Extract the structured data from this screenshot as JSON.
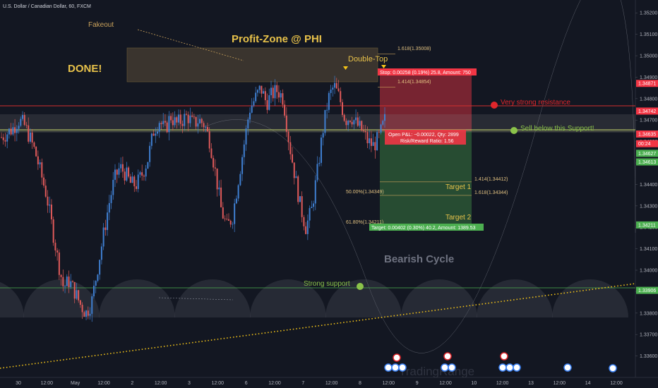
{
  "header": {
    "symbol_label": "U.S. Dollar / Canadian Dollar, 60, FXCM"
  },
  "annotations": {
    "fakeout": "Fakeout",
    "profit_zone": "Profit-Zone @ PHI",
    "done": "DONE!",
    "double_top": "Double-Top",
    "very_strong_resistance": "Very strong resistance",
    "sell_below_support": "Sell below this Support!",
    "target1": "Target 1",
    "target2": "Target 2",
    "bearish_cycle": "Bearish Cycle",
    "strong_support": "Strong support",
    "watermark": "TradingRange"
  },
  "fib_labels": {
    "f1618_top": "1.618(1.35008)",
    "f1414_top": "1.414(1.34854)",
    "f1414_bot": "1.414(1.34412)",
    "f50": "50.00%(1.34349)",
    "f1618_bot": "1.618(1.34344)",
    "f618": "61.80%(1.34211)"
  },
  "position": {
    "stop": "Stop: 0.00258 (0.19%) 25.8, Amount: 750",
    "open_pl": "Open P&L: −0.00022, Qty: 2899",
    "rr": "Risk/Reward Ratio: 1.56",
    "target": "Target: 0.00402 (0.30%) 40.2, Amount: 1389.53"
  },
  "price_badges": [
    {
      "label": "1.34871",
      "price": 1.34871,
      "color": "#f23645"
    },
    {
      "label": "1.34742",
      "price": 1.34742,
      "color": "#f23645"
    },
    {
      "label": "1.34635",
      "price": 1.34635,
      "color": "#f23645"
    },
    {
      "label": "00:24",
      "price": 1.3459,
      "color": "#f23645"
    },
    {
      "label": "1.34627",
      "price": 1.34545,
      "color": "#4caf50"
    },
    {
      "label": "1.34613",
      "price": 1.34505,
      "color": "#4caf50"
    },
    {
      "label": "1.34211",
      "price": 1.34211,
      "color": "#4caf50"
    },
    {
      "label": "1.33906",
      "price": 1.33906,
      "color": "#4caf50"
    }
  ],
  "chart_data": {
    "type": "candlestick",
    "y_axis": {
      "range": [
        1.335,
        1.3526
      ],
      "ticks": [
        1.352,
        1.351,
        1.35,
        1.349,
        1.348,
        1.347,
        1.346,
        1.345,
        1.344,
        1.343,
        1.342,
        1.341,
        1.34,
        1.339,
        1.338,
        1.337,
        1.336
      ],
      "tick_labels": [
        "1.35200",
        "1.35100",
        "1.35000",
        "1.34900",
        "1.34800",
        "1.34700",
        "1.34600",
        "1.34500",
        "1.34400",
        "1.34300",
        "1.34200",
        "1.34100",
        "1.34000",
        "1.33900",
        "1.33800",
        "1.33700",
        "1.33600"
      ]
    },
    "x_axis": {
      "labels": [
        "30",
        "12:00",
        "May",
        "12:00",
        "2",
        "12:00",
        "3",
        "12:00",
        "6",
        "12:00",
        "7",
        "12:00",
        "8",
        "12:00",
        "9",
        "12:00",
        "10",
        "12:00",
        "13",
        "12:00",
        "14",
        "12:00"
      ]
    },
    "levels": {
      "very_strong_resistance": 1.34742,
      "support": 1.3463,
      "strong_support": 1.33906,
      "profit_zone_top": 1.35008,
      "profit_zone_bottom": 1.34854,
      "fib_1414_bottom": 1.34412,
      "fib_50": 1.34349,
      "fib_1618_bottom": 1.34344,
      "fib_618": 1.34211
    },
    "position": {
      "entry": 1.34613,
      "stop": 1.34871,
      "target": 1.34211
    },
    "close_path": [
      1.3462,
      1.3464,
      1.3466,
      1.347,
      1.3468,
      1.3462,
      1.3455,
      1.3445,
      1.3435,
      1.342,
      1.3405,
      1.3392,
      1.3395,
      1.339,
      1.3384,
      1.338,
      1.3385,
      1.34,
      1.3415,
      1.343,
      1.3442,
      1.3448,
      1.3445,
      1.344,
      1.344,
      1.3445,
      1.3452,
      1.3465,
      1.347,
      1.3465,
      1.3472,
      1.3468,
      1.347,
      1.3472,
      1.3468,
      1.347,
      1.3468,
      1.346,
      1.3445,
      1.3428,
      1.342,
      1.3425,
      1.3442,
      1.3458,
      1.3475,
      1.348,
      1.3485,
      1.3478,
      1.3482,
      1.3484,
      1.348,
      1.346,
      1.3445,
      1.343,
      1.342,
      1.3428,
      1.3445,
      1.3465,
      1.348,
      1.3486,
      1.348,
      1.347,
      1.3472,
      1.3468,
      1.3465,
      1.346,
      1.3458,
      1.3462,
      1.347
    ]
  }
}
